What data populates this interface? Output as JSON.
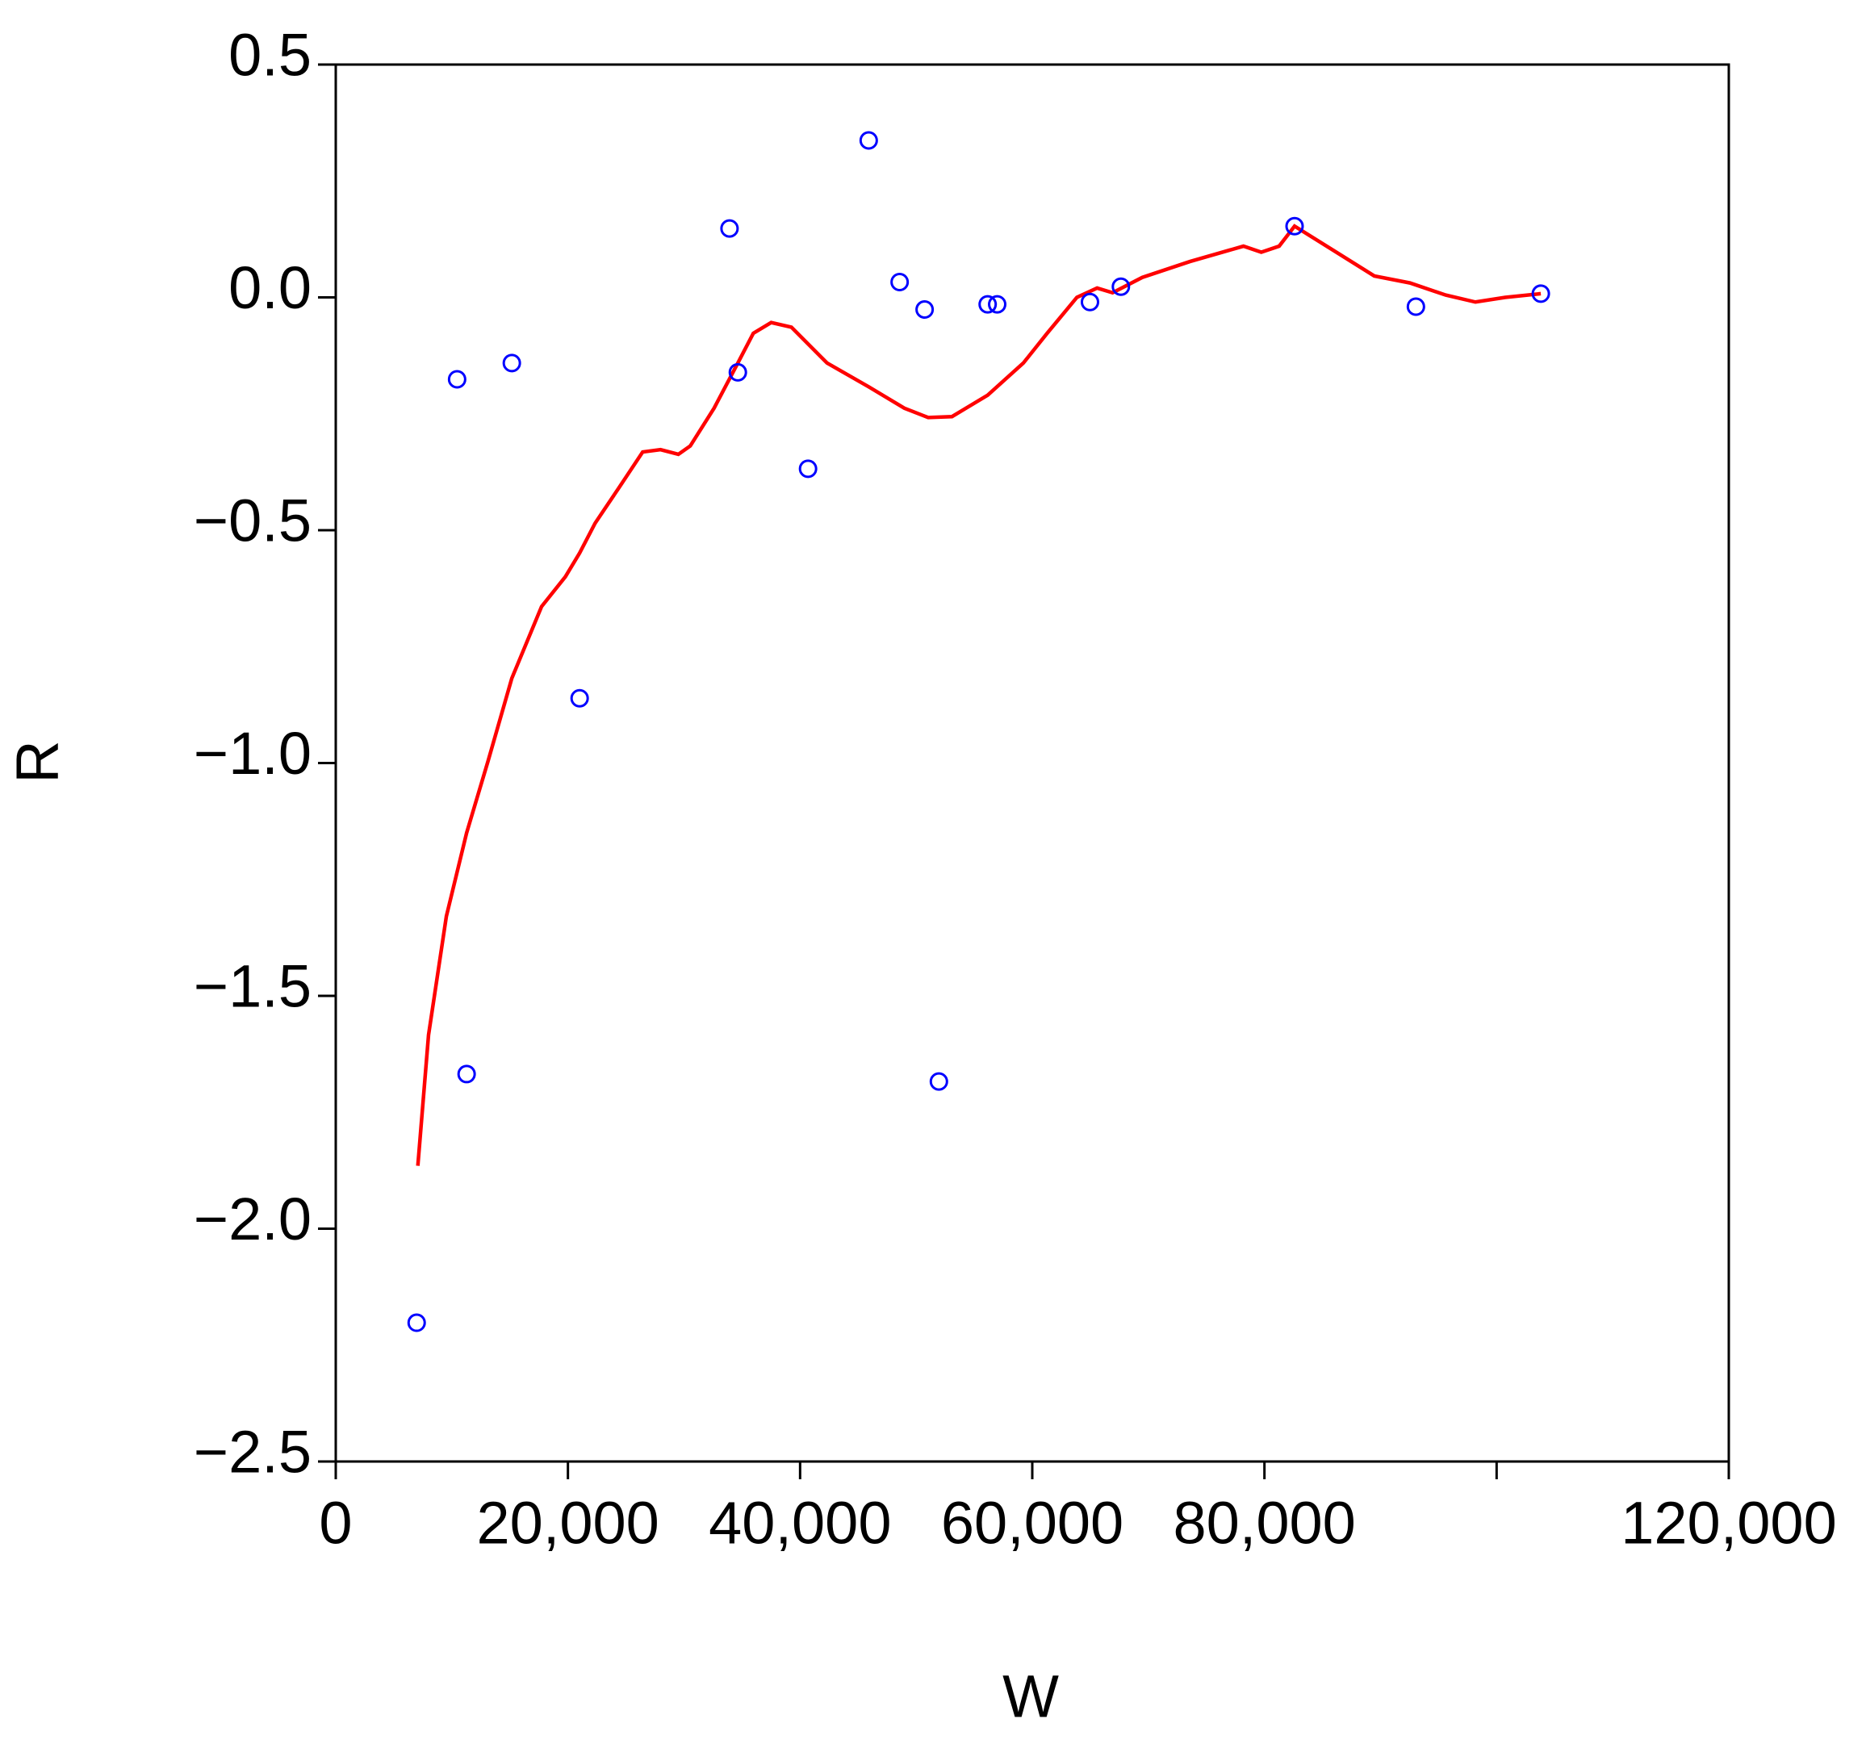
{
  "chart_data": {
    "type": "scatter",
    "x_label": "W",
    "y_label": "R",
    "xlim": [
      0,
      120000
    ],
    "ylim": [
      -2.5,
      0.5
    ],
    "xticks": [
      0,
      {
        "value": 20000,
        "label": "20,000"
      },
      {
        "value": 40000,
        "label": "40,000"
      },
      {
        "value": 60000,
        "label": "60,000"
      },
      {
        "value": 80000,
        "label": "80,000"
      },
      {
        "value": 100000,
        "label": null
      },
      {
        "value": 120000,
        "label": "120,000"
      }
    ],
    "yticks": [
      0.5,
      {
        "value": 0,
        "label": "0.0"
      },
      {
        "value": -0.5,
        "label": "−0.5"
      },
      {
        "value": -1,
        "label": "−1.0"
      },
      {
        "value": -1.5,
        "label": "−1.5"
      },
      {
        "value": -2,
        "label": "−2.0"
      },
      {
        "value": -2.5,
        "label": "−2.5"
      }
    ],
    "points": {
      "color": "#0000ff",
      "x": [
        6969,
        10453,
        11273,
        15167,
        21008,
        33920,
        34638,
        40684,
        45910,
        48574,
        50726,
        51956,
        56157,
        56977,
        64970,
        67634,
        82595,
        93048,
        103808
      ],
      "y": [
        -2.202,
        -0.176,
        -1.668,
        -0.141,
        -0.861,
        0.148,
        -0.161,
        -0.368,
        0.337,
        0.033,
        -0.026,
        -1.684,
        -0.015,
        -0.015,
        -0.01,
        0.023,
        0.153,
        -0.02,
        0.008
      ]
    },
    "fit": {
      "color": "#ff0000",
      "x": [
        7071,
        7993,
        9530,
        11273,
        13117,
        15167,
        17729,
        19778,
        21008,
        22340,
        24390,
        26440,
        27977,
        29514,
        30539,
        32589,
        34638,
        35971,
        37508,
        39250,
        42325,
        45910,
        48985,
        51034,
        53084,
        56157,
        59232,
        61282,
        63844,
        65586,
        66918,
        69480,
        73579,
        78191,
        79728,
        81265,
        82595,
        85362,
        89462,
        92536,
        95611,
        98173,
        100735,
        103808
      ],
      "y": [
        -1.865,
        -1.584,
        -1.329,
        -1.15,
        -0.996,
        -0.818,
        -0.664,
        -0.6,
        -0.549,
        -0.485,
        -0.409,
        -0.332,
        -0.327,
        -0.337,
        -0.319,
        -0.238,
        -0.141,
        -0.077,
        -0.054,
        -0.064,
        -0.141,
        -0.192,
        -0.238,
        -0.258,
        -0.256,
        -0.21,
        -0.141,
        -0.077,
        0,
        0.02,
        0.01,
        0.043,
        0.077,
        0.11,
        0.097,
        0.11,
        0.153,
        0.11,
        0.046,
        0.031,
        0.005,
        -0.01,
        0,
        0.008
      ]
    }
  }
}
